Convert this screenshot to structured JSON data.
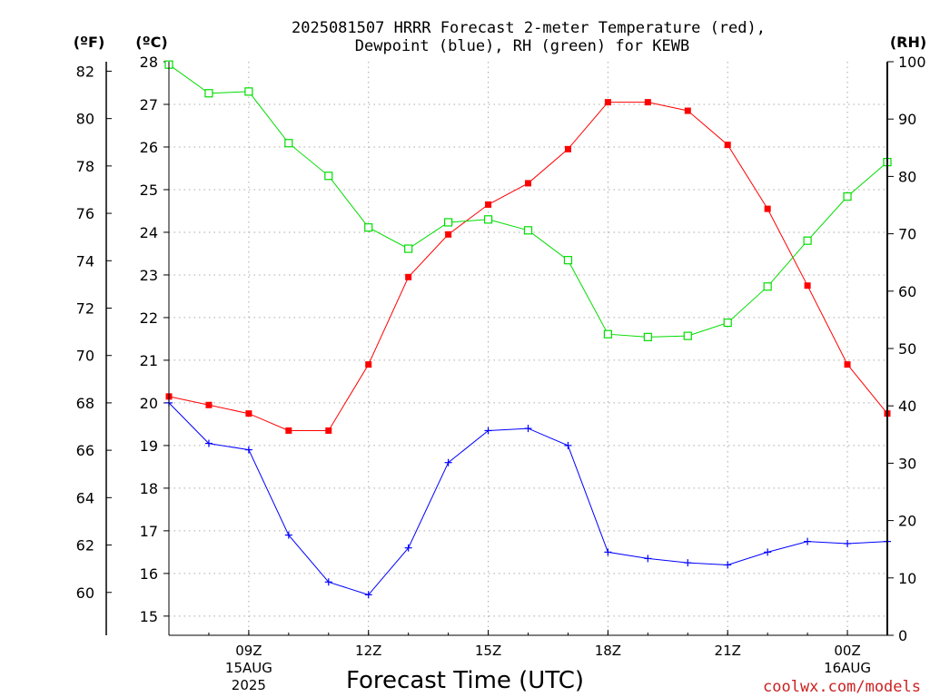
{
  "chart_data": {
    "type": "line",
    "title_line1": "2025081507 HRRR Forecast 2-meter Temperature (red),",
    "title_line2": "Dewpoint (blue), RH (green) for KEWB",
    "xlabel": "Forecast Time (UTC)",
    "watermark": "coolwx.com/models",
    "axis_units": {
      "fahrenheit": "(ºF)",
      "celsius": "(ºC)",
      "rh": "(RH)"
    },
    "fahrenheit_ticks": [
      "82",
      "80",
      "78",
      "76",
      "74",
      "72",
      "70",
      "68",
      "66",
      "64",
      "62",
      "60"
    ],
    "celsius_ticks": [
      "28",
      "27",
      "26",
      "25",
      "24",
      "23",
      "22",
      "21",
      "20",
      "19",
      "18",
      "17",
      "16",
      "15"
    ],
    "rh_ticks": [
      "100",
      "90",
      "80",
      "70",
      "60",
      "50",
      "40",
      "30",
      "20",
      "10",
      "0"
    ],
    "x_tick_labels": [
      {
        "hour": 9,
        "label": "09Z",
        "sub1": "15AUG",
        "sub2": "2025"
      },
      {
        "hour": 12,
        "label": "12Z",
        "sub1": "",
        "sub2": ""
      },
      {
        "hour": 15,
        "label": "15Z",
        "sub1": "",
        "sub2": ""
      },
      {
        "hour": 18,
        "label": "18Z",
        "sub1": "",
        "sub2": ""
      },
      {
        "hour": 21,
        "label": "21Z",
        "sub1": "",
        "sub2": ""
      },
      {
        "hour": 24,
        "label": "00Z",
        "sub1": "16AUG",
        "sub2": ""
      }
    ],
    "x_range_hours": [
      7,
      25
    ],
    "ylim_celsius": [
      14.55,
      28.0
    ],
    "ylim_rh": [
      0,
      100
    ],
    "grid": true,
    "x_hours": [
      7,
      8,
      9,
      10,
      11,
      12,
      13,
      14,
      15,
      16,
      17,
      18,
      19,
      20,
      21,
      22,
      23,
      24,
      25
    ],
    "series": [
      {
        "name": "Temperature",
        "color": "#ff0000",
        "unit": "celsius",
        "marker": "filled-square",
        "values": [
          20.15,
          19.95,
          19.75,
          19.35,
          19.35,
          20.9,
          22.95,
          23.95,
          24.65,
          25.15,
          25.95,
          27.05,
          27.05,
          26.85,
          26.05,
          24.55,
          22.75,
          20.9,
          19.75
        ]
      },
      {
        "name": "Dewpoint",
        "color": "#0000ff",
        "unit": "celsius",
        "marker": "plus",
        "values": [
          20.0,
          19.05,
          18.9,
          16.9,
          15.8,
          15.5,
          16.6,
          18.6,
          19.35,
          19.4,
          19.0,
          16.5,
          16.35,
          16.25,
          16.2,
          16.5,
          16.75,
          16.7,
          16.75
        ]
      },
      {
        "name": "RH",
        "color": "#00dd00",
        "unit": "rh",
        "marker": "open-square",
        "values": [
          99.5,
          94.5,
          94.8,
          85.8,
          80.1,
          71.1,
          67.4,
          72.0,
          72.5,
          70.6,
          65.4,
          52.5,
          52.0,
          52.2,
          54.5,
          60.8,
          68.8,
          76.5,
          82.5
        ]
      }
    ]
  }
}
